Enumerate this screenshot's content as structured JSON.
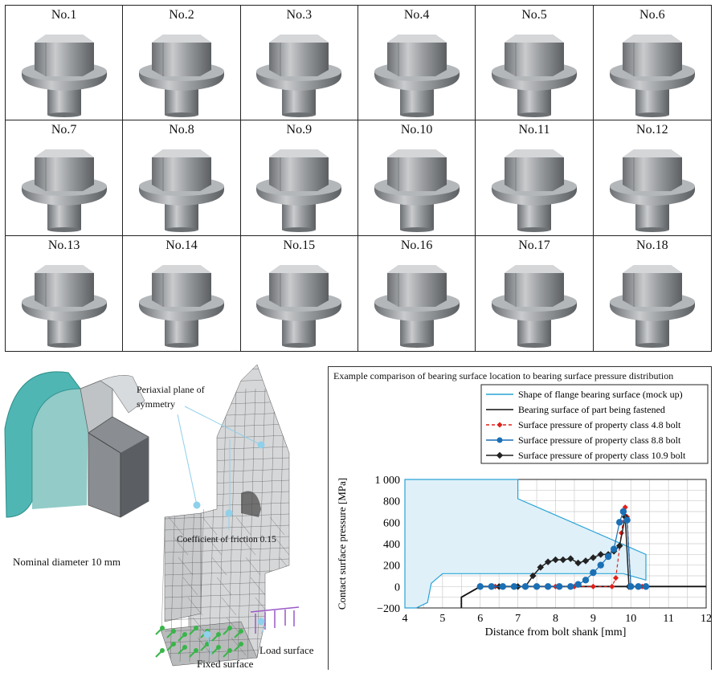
{
  "grid": {
    "labels": [
      "No.1",
      "No.2",
      "No.3",
      "No.4",
      "No.5",
      "No.6",
      "No.7",
      "No.8",
      "No.9",
      "No.10",
      "No.11",
      "No.12",
      "No.13",
      "No.14",
      "No.15",
      "No.16",
      "No.17",
      "No.18"
    ]
  },
  "model": {
    "periaxial": "Periaxial plane of",
    "periaxial2": "symmetry",
    "friction": "Coefficient of friction 0.15",
    "nominal": "Nominal diameter 10 mm",
    "load": "Load surface",
    "fixed": "Fixed surface"
  },
  "chart_data": {
    "type": "line",
    "title": "Example comparison of bearing surface location to bearing surface pressure distribution",
    "xlabel": "Distance from bolt shank [mm]",
    "ylabel": "Contact surface pressure [MPa]",
    "xlim": [
      4,
      12
    ],
    "ylim": [
      -200,
      1000
    ],
    "xticks": [
      "4",
      "5",
      "6",
      "7",
      "8",
      "9",
      "10",
      "11",
      "12"
    ],
    "yticks": [
      "−200",
      "0",
      "200",
      "400",
      "600",
      "800",
      "1 000"
    ],
    "legend_position": "top-right",
    "grid": true,
    "series": [
      {
        "name": "Shape of flange bearing surface (mock up)",
        "color": "#29a3d6",
        "style": "solid-fill",
        "x": [
          4,
          4,
          7,
          7,
          10.4,
          10.4,
          9.8,
          5,
          4.7,
          4.6,
          4.3,
          4
        ],
        "y": [
          -200,
          1000,
          1000,
          820,
          300,
          60,
          120,
          120,
          30,
          -150,
          -200,
          -200
        ]
      },
      {
        "name": "Bearing surface of part being fastened",
        "color": "#111",
        "style": "solid",
        "x": [
          5.5,
          5.5,
          6,
          10,
          12
        ],
        "y": [
          -200,
          -100,
          0,
          0,
          0
        ]
      },
      {
        "name": "Surface pressure of property class 4.8 bolt",
        "color": "#e0201a",
        "style": "dashed",
        "x": [
          6,
          6.4,
          7,
          7.5,
          8,
          8.5,
          9,
          9.5,
          9.6,
          9.75,
          9.85,
          9.9,
          10,
          10.3
        ],
        "y": [
          0,
          0,
          0,
          0,
          0,
          0,
          0,
          0,
          80,
          500,
          740,
          650,
          0,
          0
        ]
      },
      {
        "name": "Surface pressure of property class 8.8 bolt",
        "color": "#1a6fb5",
        "style": "solid",
        "x": [
          6,
          6.3,
          6.6,
          6.9,
          7.2,
          7.5,
          7.8,
          8.1,
          8.4,
          8.6,
          8.8,
          9.0,
          9.2,
          9.4,
          9.55,
          9.7,
          9.8,
          9.9,
          10,
          10.2,
          10.4
        ],
        "y": [
          0,
          0,
          0,
          0,
          0,
          0,
          0,
          0,
          0,
          20,
          60,
          130,
          200,
          280,
          350,
          600,
          700,
          620,
          0,
          0,
          0
        ]
      },
      {
        "name": "Surface pressure of property class 10.9 bolt",
        "color": "#222",
        "style": "solid",
        "x": [
          6,
          6.5,
          7,
          7.2,
          7.4,
          7.6,
          7.8,
          8.0,
          8.2,
          8.4,
          8.6,
          8.8,
          9.0,
          9.2,
          9.4,
          9.55,
          9.7,
          9.85,
          9.95,
          10,
          10.2,
          10.4
        ],
        "y": [
          0,
          0,
          0,
          0,
          100,
          180,
          230,
          250,
          250,
          260,
          220,
          240,
          270,
          300,
          300,
          330,
          380,
          650,
          0,
          0,
          0,
          0
        ]
      }
    ]
  }
}
